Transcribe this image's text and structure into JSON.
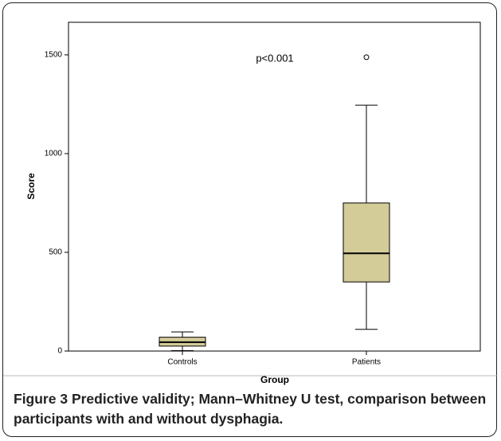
{
  "chart_data": {
    "type": "box",
    "categories": [
      "Controls",
      "Patients"
    ],
    "boxes": [
      {
        "min": 2,
        "q1": 25,
        "median": 45,
        "q3": 70,
        "max": 97,
        "outliers": []
      },
      {
        "min": 110,
        "q1": 350,
        "median": 495,
        "q3": 750,
        "max": 1245,
        "outliers": [
          1488
        ]
      }
    ],
    "color": "#d3cc98",
    "ylim": [
      0,
      1665
    ],
    "yticks": [
      0,
      500,
      1000,
      1500
    ],
    "y_label": "Score",
    "x_label": "Group",
    "annotation": "p<0.001"
  },
  "caption": {
    "label": "Figure 3",
    "text": "Predictive validity; Mann–Whitney U test, comparison between participants with and without dysphagia."
  }
}
